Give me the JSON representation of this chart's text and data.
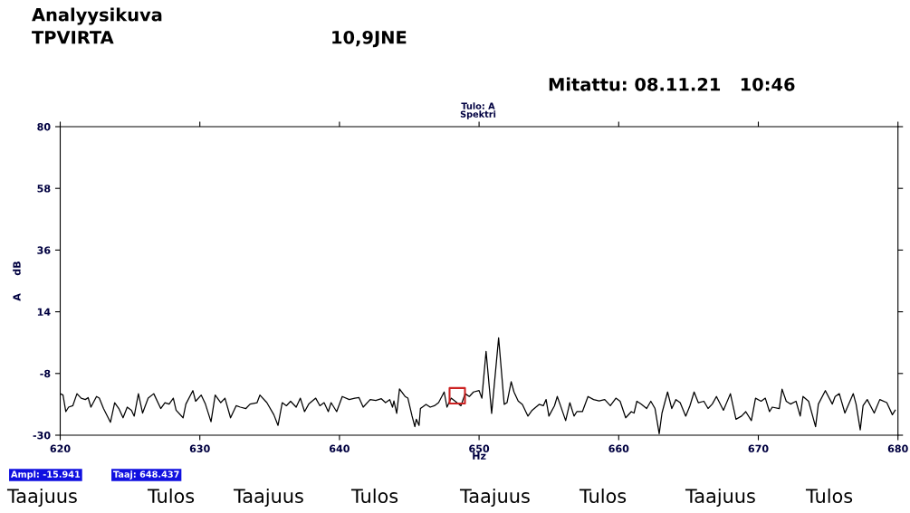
{
  "chart_data": {
    "type": "line",
    "title": "Analyysikuva",
    "subtitle": "TPVIRTA",
    "xlabel": "Hz",
    "ylabel": "A     dB",
    "annotations": [
      "10,9JNE",
      "Mitattu: 08.11.21   10:46",
      "Tulo: A",
      "Spektri",
      "Ampl: -15.941",
      "Taaj: 648.437",
      "Taajuus",
      "Tulos",
      "Taajuus",
      "Tulos",
      "Taajuus",
      "Tulos",
      "Taajuus",
      "Tulos"
    ],
    "xlim": [
      620,
      680
    ],
    "xticks": [
      620,
      630,
      640,
      650,
      660,
      670,
      680
    ],
    "ylim": [
      -30,
      80
    ],
    "yticks": [
      -30,
      -8,
      14,
      36,
      58,
      80
    ],
    "grid": false,
    "legend": false,
    "marker": "none",
    "line_style": "solid",
    "series": [
      {
        "type": "scatter",
        "color": "#cc2222",
        "marker": "square",
        "x": [
          648.437
        ],
        "values": [
          -15.941
        ]
      },
      {
        "color": "#000000",
        "x": [
          620.0,
          620.2,
          620.4,
          620.6,
          620.9,
          621.2,
          621.5,
          621.8,
          622.0,
          622.2,
          622.6,
          622.8,
          623.1,
          623.6,
          623.9,
          624.2,
          624.5,
          624.8,
          625.1,
          625.3,
          625.6,
          625.9,
          626.3,
          626.7,
          627.2,
          627.5,
          627.8,
          628.1,
          628.3,
          628.8,
          629.0,
          629.5,
          629.7,
          630.1,
          630.4,
          630.8,
          631.1,
          631.5,
          631.8,
          632.2,
          632.6,
          632.9,
          633.3,
          633.6,
          634.1,
          634.3,
          634.8,
          635.3,
          635.6,
          635.9,
          636.2,
          636.5,
          636.9,
          637.2,
          637.5,
          637.8,
          638.3,
          638.6,
          638.9,
          639.2,
          639.4,
          639.8,
          640.2,
          640.7,
          641.1,
          641.4,
          641.7,
          642.2,
          642.6,
          643.0,
          643.3,
          643.6,
          643.8,
          643.9,
          644.1,
          644.3,
          644.7,
          644.9,
          645.2,
          645.4,
          645.5,
          645.7,
          645.8,
          646.2,
          646.5,
          646.8,
          647.1,
          647.5,
          647.7,
          648.0,
          648.7,
          649.0,
          649.3,
          649.6,
          650.0,
          650.2,
          650.5,
          650.9,
          651.4,
          651.8,
          652.0,
          652.3,
          652.5,
          652.8,
          653.1,
          653.5,
          653.8,
          654.3,
          654.6,
          654.8,
          655.0,
          655.4,
          655.6,
          655.8,
          656.2,
          656.5,
          656.8,
          657.0,
          657.4,
          657.8,
          658.2,
          658.6,
          659.0,
          659.4,
          659.8,
          660.1,
          660.5,
          660.9,
          661.1,
          661.3,
          661.6,
          662.0,
          662.3,
          662.6,
          662.9,
          663.1,
          663.5,
          663.8,
          664.1,
          664.4,
          664.8,
          665.1,
          665.4,
          665.7,
          666.1,
          666.4,
          666.7,
          667.0,
          667.5,
          668.0,
          668.4,
          668.8,
          669.1,
          669.5,
          669.8,
          670.2,
          670.5,
          670.8,
          671.0,
          671.5,
          671.7,
          672.0,
          672.3,
          672.7,
          673.0,
          673.2,
          673.6,
          674.1,
          674.3,
          674.8,
          675.3,
          675.5,
          675.8,
          676.2,
          676.8,
          677.0,
          677.3,
          677.5,
          677.8,
          678.3,
          678.7,
          679.2,
          679.6,
          679.8
        ],
        "values": [
          -15.2,
          -15.7,
          -21.6,
          -20.0,
          -19.5,
          -15.2,
          -16.8,
          -17.3,
          -16.6,
          -20.0,
          -16.2,
          -16.8,
          -20.5,
          -25.4,
          -18.4,
          -20.5,
          -23.8,
          -20.0,
          -21.1,
          -23.2,
          -15.2,
          -22.1,
          -16.8,
          -15.2,
          -20.5,
          -18.4,
          -18.9,
          -16.8,
          -21.1,
          -23.8,
          -18.9,
          -14.1,
          -17.9,
          -15.7,
          -18.9,
          -25.2,
          -15.7,
          -18.4,
          -16.8,
          -23.8,
          -19.5,
          -20.0,
          -20.5,
          -18.9,
          -18.4,
          -15.7,
          -18.4,
          -22.7,
          -26.5,
          -18.4,
          -19.5,
          -17.9,
          -20.0,
          -16.8,
          -21.6,
          -18.9,
          -16.8,
          -19.5,
          -18.4,
          -21.6,
          -18.4,
          -21.6,
          -16.2,
          -17.3,
          -16.8,
          -16.6,
          -20.0,
          -17.3,
          -17.6,
          -17.0,
          -18.4,
          -17.3,
          -20.0,
          -17.8,
          -22.2,
          -13.5,
          -16.2,
          -16.8,
          -23.2,
          -27.0,
          -24.3,
          -26.5,
          -20.5,
          -19.0,
          -20.0,
          -19.5,
          -18.4,
          -14.6,
          -20.0,
          -16.8,
          -19.5,
          -15.2,
          -16.2,
          -14.6,
          -14.1,
          -16.8,
          -0.1,
          -22.2,
          4.7,
          -19.0,
          -18.4,
          -10.9,
          -14.6,
          -17.8,
          -19.0,
          -23.2,
          -21.1,
          -19.0,
          -19.5,
          -17.3,
          -23.2,
          -19.5,
          -16.2,
          -19.0,
          -24.8,
          -18.4,
          -23.2,
          -21.6,
          -21.6,
          -16.2,
          -17.3,
          -17.8,
          -17.3,
          -19.5,
          -16.8,
          -17.9,
          -23.8,
          -21.6,
          -22.1,
          -17.9,
          -18.9,
          -20.5,
          -17.9,
          -20.5,
          -29.5,
          -22.1,
          -14.6,
          -20.5,
          -17.3,
          -18.4,
          -23.2,
          -19.5,
          -14.6,
          -18.4,
          -17.9,
          -20.5,
          -18.9,
          -16.2,
          -21.1,
          -15.2,
          -24.3,
          -23.2,
          -21.6,
          -24.8,
          -16.8,
          -17.9,
          -16.8,
          -21.6,
          -20.0,
          -20.5,
          -13.6,
          -17.9,
          -18.9,
          -17.9,
          -23.2,
          -16.2,
          -17.9,
          -27.0,
          -18.9,
          -14.1,
          -18.9,
          -16.2,
          -15.2,
          -22.1,
          -15.2,
          -18.9,
          -28.1,
          -19.5,
          -17.3,
          -22.1,
          -17.3,
          -18.4,
          -22.7,
          -21.1
        ]
      }
    ]
  }
}
